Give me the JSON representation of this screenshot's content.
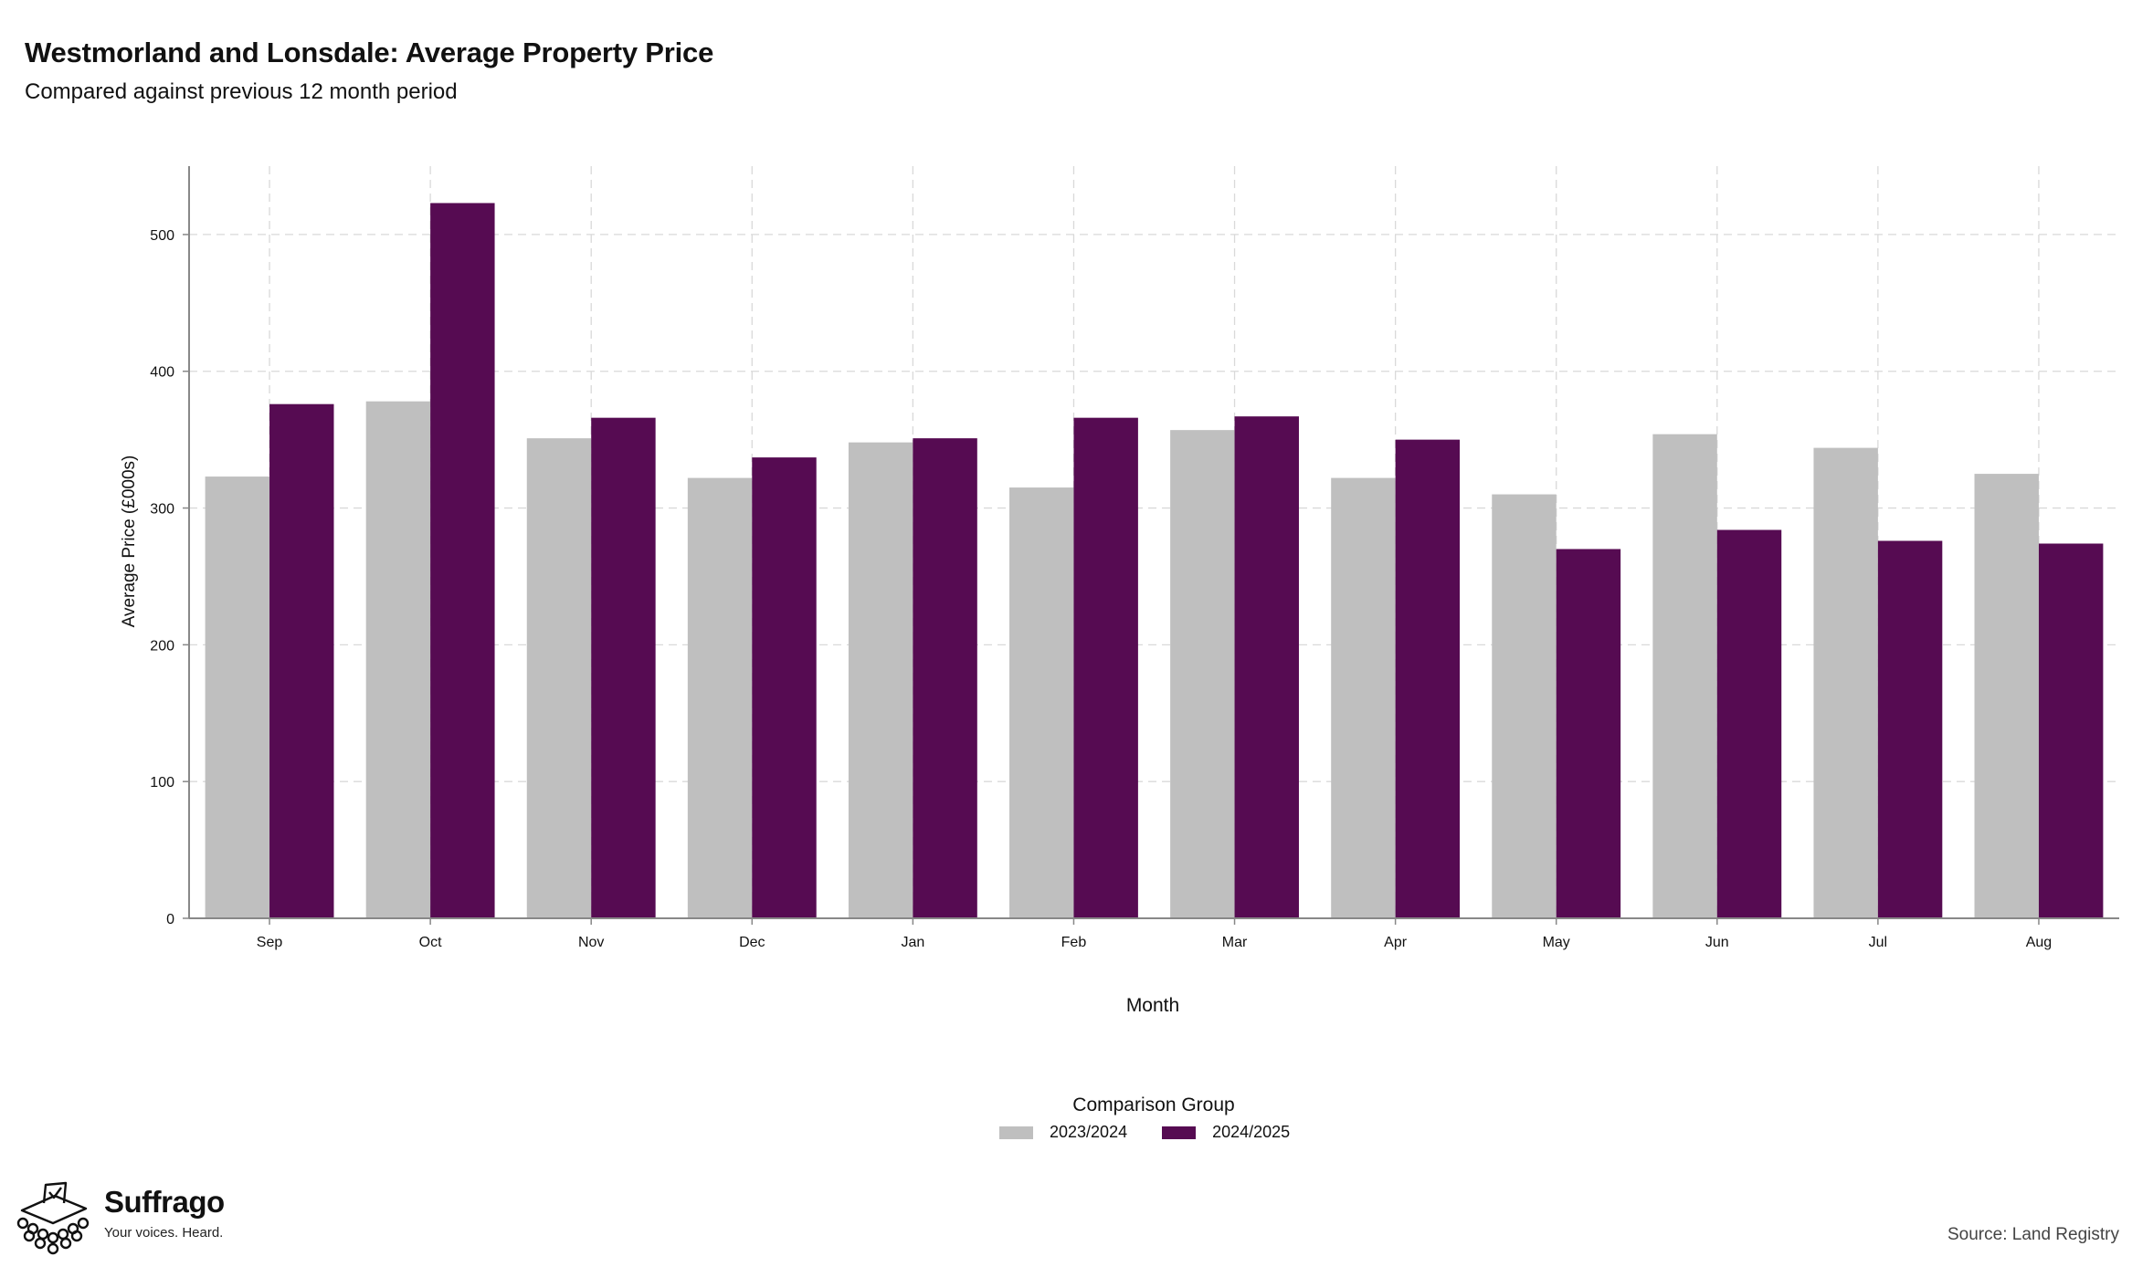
{
  "header": {
    "title": "Westmorland and Lonsdale: Average Property Price",
    "subtitle": "Compared against previous 12 month period"
  },
  "legend": {
    "title": "Comparison Group",
    "items": [
      {
        "label": "2023/2024",
        "color": "#bfbfbf"
      },
      {
        "label": "2024/2025",
        "color": "#560b52"
      }
    ]
  },
  "footer": {
    "brand": "Suffrago",
    "tagline": "Your voices. Heard.",
    "source": "Source: Land Registry"
  },
  "chart_data": {
    "type": "bar",
    "title": "Westmorland and Lonsdale: Average Property Price",
    "subtitle": "Compared against previous 12 month period",
    "xlabel": "Month",
    "ylabel": "Average Price (£000s)",
    "categories": [
      "Sep",
      "Oct",
      "Nov",
      "Dec",
      "Jan",
      "Feb",
      "Mar",
      "Apr",
      "May",
      "Jun",
      "Jul",
      "Aug"
    ],
    "series": [
      {
        "name": "2023/2024",
        "color": "#bfbfbf",
        "values": [
          323,
          378,
          351,
          322,
          348,
          315,
          357,
          322,
          310,
          354,
          344,
          325
        ]
      },
      {
        "name": "2024/2025",
        "color": "#560b52",
        "values": [
          376,
          523,
          366,
          337,
          351,
          366,
          367,
          350,
          270,
          284,
          276,
          274
        ]
      }
    ],
    "ylim": [
      0,
      550
    ],
    "yticks": [
      0,
      100,
      200,
      300,
      400,
      500
    ],
    "grid": true,
    "legend_position": "bottom"
  }
}
